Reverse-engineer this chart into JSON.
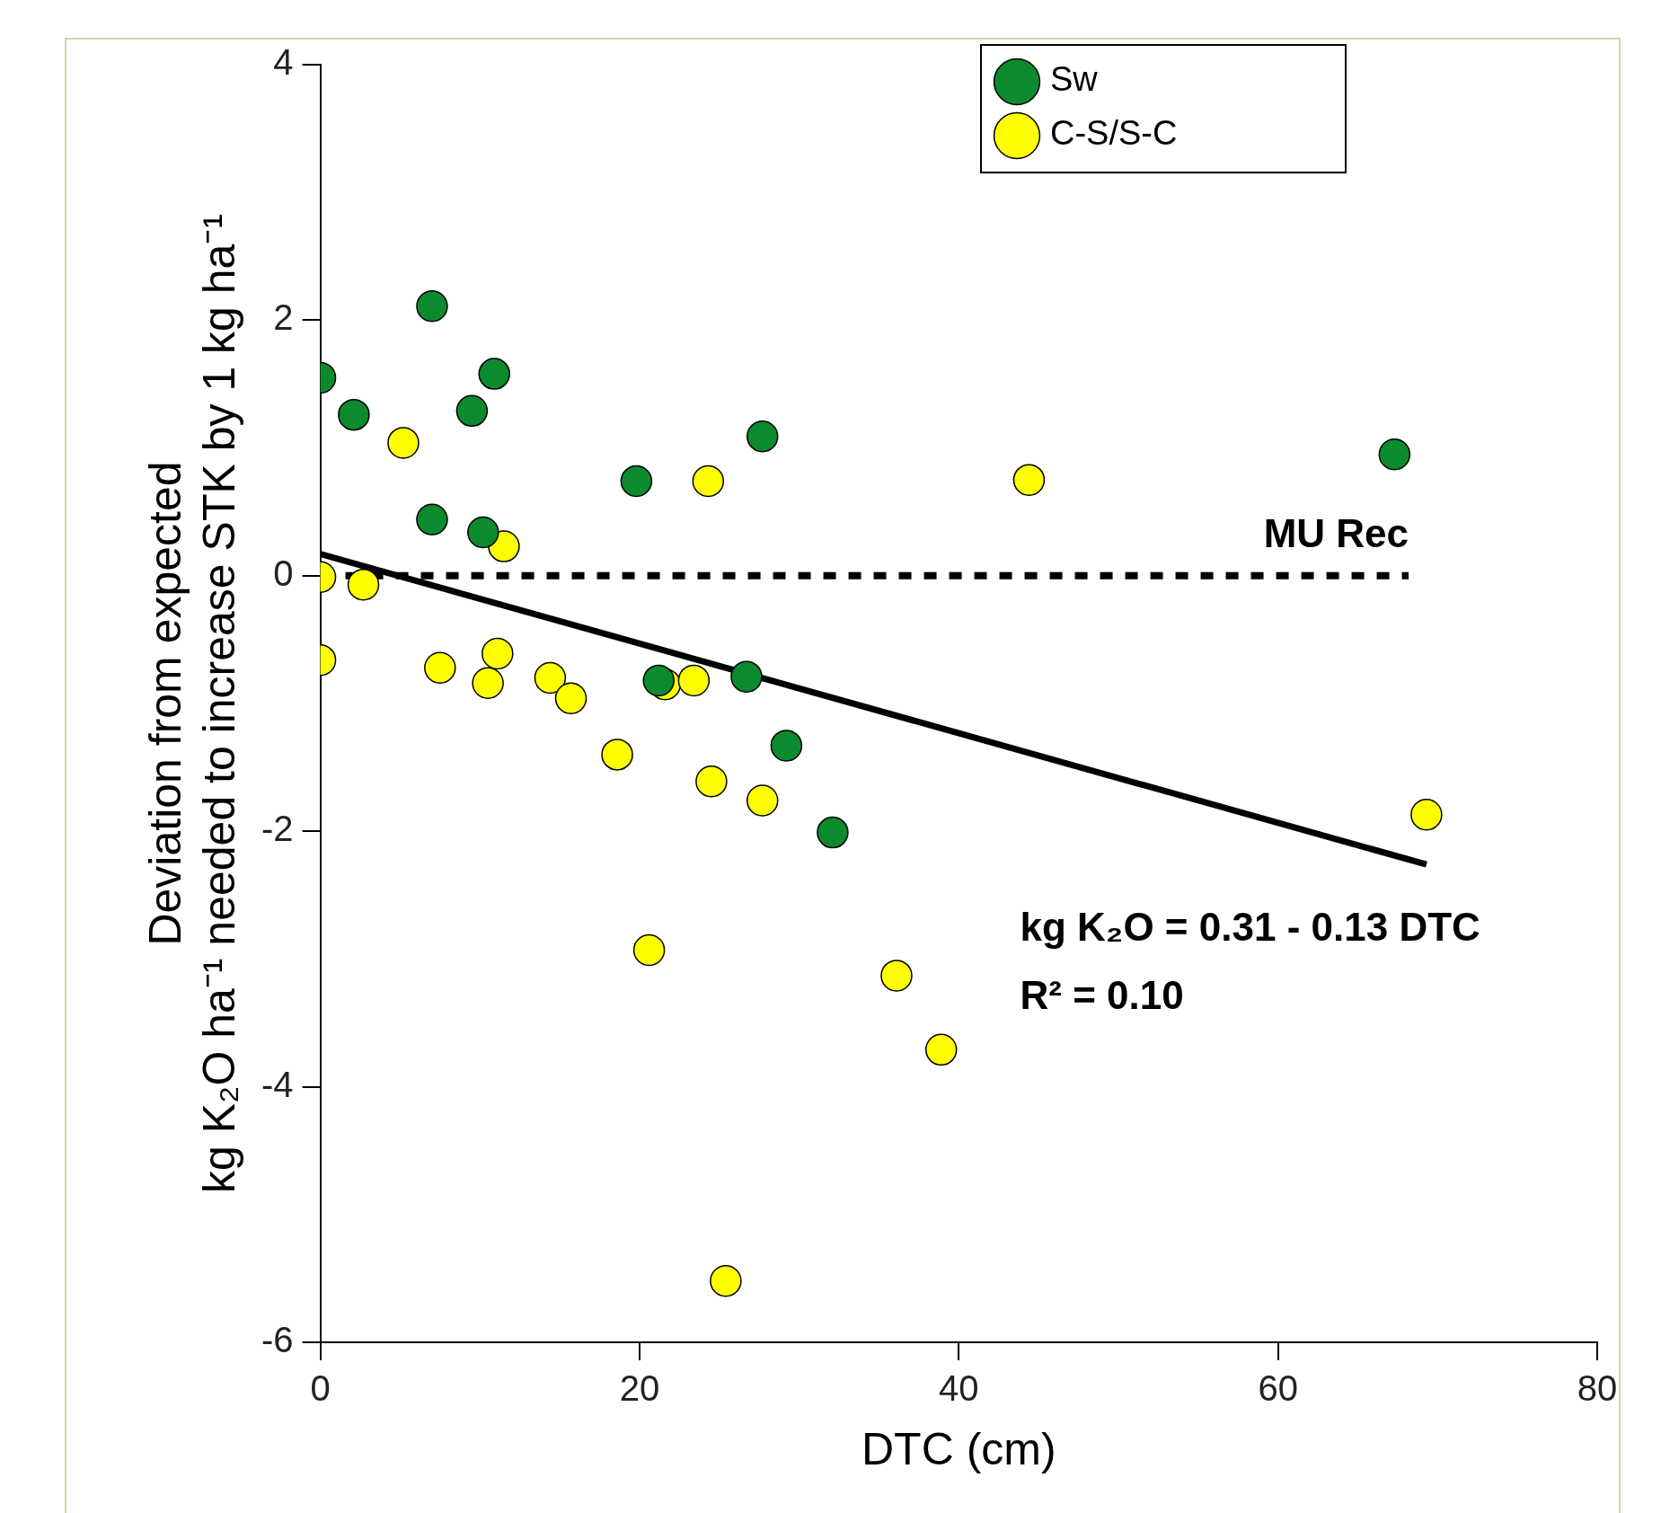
{
  "chart_data": {
    "type": "scatter",
    "xlabel": "DTC (cm)",
    "ylabel": "Deviation from expected\nkg K₂O ha⁻¹ needed to increase STK by 1 kg ha⁻¹",
    "xlim": [
      0,
      80
    ],
    "xticks": [
      0,
      20,
      40,
      60,
      80
    ],
    "ylim": [
      -6,
      4
    ],
    "yticks": [
      -6,
      -4,
      -2,
      0,
      2,
      4
    ],
    "grid": false,
    "legend": "top right",
    "series": [
      {
        "name": "Sw",
        "color": "#0b8a2e",
        "marker": "circle",
        "x": [
          0,
          2.1,
          7.0,
          9.5,
          10.9,
          7.0,
          10.2,
          19.8,
          27.7,
          67.3,
          21.2,
          26.7,
          29.2,
          32.1
        ],
        "values": [
          1.55,
          1.26,
          2.11,
          1.29,
          1.58,
          0.44,
          0.34,
          0.74,
          1.09,
          0.95,
          -0.82,
          -0.79,
          -1.33,
          -2.01
        ]
      },
      {
        "name": "C-S/S-C",
        "color": "#ffff00",
        "marker": "circle",
        "x": [
          5.2,
          24.3,
          44.4,
          11.5,
          0,
          2.7,
          0,
          7.5,
          10.5,
          11.1,
          14.4,
          15.7,
          18.6,
          21.6,
          23.4,
          24.5,
          27.7,
          69.3,
          20.6,
          36.1,
          38.9,
          25.4
        ],
        "values": [
          1.04,
          0.74,
          0.75,
          0.23,
          -0.01,
          -0.07,
          -0.66,
          -0.72,
          -0.84,
          -0.61,
          -0.8,
          -0.96,
          -1.4,
          -0.85,
          -0.82,
          -1.61,
          -1.76,
          -1.87,
          -2.93,
          -3.13,
          -3.71,
          -5.52
        ]
      },
      {
        "type": "line",
        "color": "#000000",
        "x": [
          0,
          69.3
        ],
        "values": [
          0.17,
          -2.26
        ]
      }
    ],
    "ref_lines": [
      {
        "axis": "y",
        "value": 0,
        "label": "MU Rec",
        "color": "#000000",
        "line_style": "dotted"
      }
    ],
    "annotations": [
      "kg K₂O = 0.31 - 0.13 DTC",
      "R² = 0.10"
    ]
  }
}
